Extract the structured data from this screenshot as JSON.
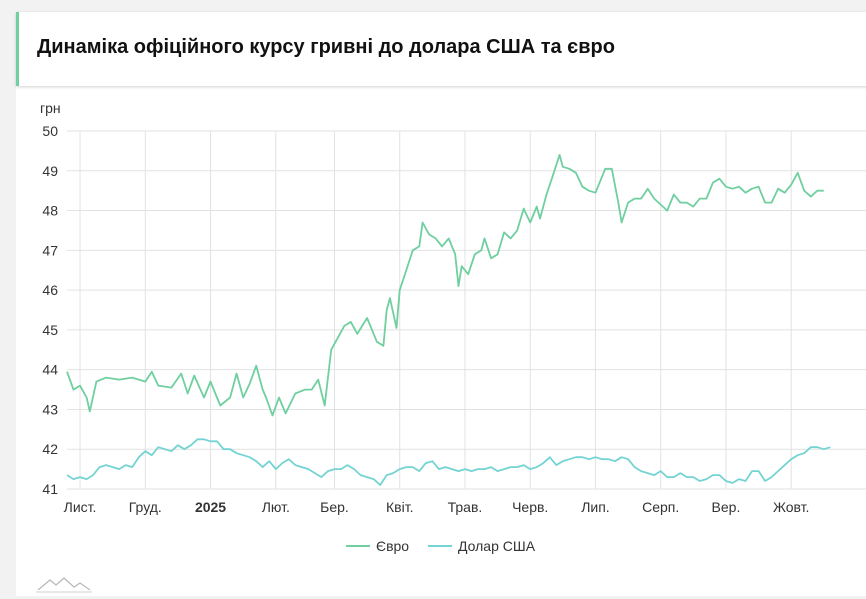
{
  "page": {
    "title": "Динаміка офіційного курсу гривні до долара США та євро"
  },
  "colors": {
    "eur": "#6fcf9f",
    "usd": "#74d3d3",
    "grid": "#e2e2e2",
    "accent": "#6fcf9f"
  },
  "chart_data": {
    "type": "line",
    "ylabel": "грн",
    "ylim": [
      41,
      50
    ],
    "yticks": [
      41,
      42,
      43,
      44,
      45,
      46,
      47,
      48,
      49,
      50
    ],
    "xlim": [
      0,
      12.4
    ],
    "xticks": [
      {
        "label": "Лист.",
        "x": 0.2,
        "bold": false
      },
      {
        "label": "Груд.",
        "x": 1.2,
        "bold": false
      },
      {
        "label": "2025",
        "x": 2.2,
        "bold": true
      },
      {
        "label": "Лют.",
        "x": 3.2,
        "bold": false
      },
      {
        "label": "Бер.",
        "x": 4.1,
        "bold": false
      },
      {
        "label": "Квіт.",
        "x": 5.1,
        "bold": false
      },
      {
        "label": "Трав.",
        "x": 6.1,
        "bold": false
      },
      {
        "label": "Черв.",
        "x": 7.1,
        "bold": false
      },
      {
        "label": "Лип.",
        "x": 8.1,
        "bold": false
      },
      {
        "label": "Серп.",
        "x": 9.1,
        "bold": false
      },
      {
        "label": "Вер.",
        "x": 10.1,
        "bold": false
      },
      {
        "label": "Жовт.",
        "x": 11.1,
        "bold": false
      }
    ],
    "grid": true,
    "legend_position": "bottom",
    "series": [
      {
        "name": "Євро",
        "color": "#6fcf9f",
        "points": [
          [
            0,
            43.95
          ],
          [
            0.1,
            43.5
          ],
          [
            0.2,
            43.6
          ],
          [
            0.3,
            43.3
          ],
          [
            0.35,
            42.95
          ],
          [
            0.45,
            43.7
          ],
          [
            0.6,
            43.8
          ],
          [
            0.8,
            43.75
          ],
          [
            1.0,
            43.8
          ],
          [
            1.2,
            43.7
          ],
          [
            1.3,
            43.95
          ],
          [
            1.4,
            43.6
          ],
          [
            1.6,
            43.55
          ],
          [
            1.75,
            43.9
          ],
          [
            1.85,
            43.4
          ],
          [
            1.95,
            43.85
          ],
          [
            2.1,
            43.3
          ],
          [
            2.2,
            43.7
          ],
          [
            2.35,
            43.1
          ],
          [
            2.5,
            43.3
          ],
          [
            2.6,
            43.9
          ],
          [
            2.7,
            43.3
          ],
          [
            2.8,
            43.65
          ],
          [
            2.9,
            44.1
          ],
          [
            3.0,
            43.5
          ],
          [
            3.05,
            43.3
          ],
          [
            3.15,
            42.85
          ],
          [
            3.25,
            43.3
          ],
          [
            3.35,
            42.9
          ],
          [
            3.5,
            43.4
          ],
          [
            3.65,
            43.5
          ],
          [
            3.75,
            43.5
          ],
          [
            3.85,
            43.75
          ],
          [
            3.95,
            43.1
          ],
          [
            4.05,
            44.5
          ],
          [
            4.15,
            44.8
          ],
          [
            4.25,
            45.1
          ],
          [
            4.35,
            45.2
          ],
          [
            4.45,
            44.9
          ],
          [
            4.6,
            45.3
          ],
          [
            4.75,
            44.7
          ],
          [
            4.85,
            44.6
          ],
          [
            4.9,
            45.5
          ],
          [
            4.95,
            45.8
          ],
          [
            5.05,
            45.05
          ],
          [
            5.1,
            46.0
          ],
          [
            5.2,
            46.5
          ],
          [
            5.3,
            47.0
          ],
          [
            5.4,
            47.1
          ],
          [
            5.45,
            47.7
          ],
          [
            5.55,
            47.4
          ],
          [
            5.65,
            47.3
          ],
          [
            5.75,
            47.1
          ],
          [
            5.85,
            47.3
          ],
          [
            5.95,
            46.9
          ],
          [
            6.0,
            46.1
          ],
          [
            6.05,
            46.6
          ],
          [
            6.15,
            46.4
          ],
          [
            6.25,
            46.9
          ],
          [
            6.35,
            47.0
          ],
          [
            6.4,
            47.3
          ],
          [
            6.5,
            46.8
          ],
          [
            6.6,
            46.9
          ],
          [
            6.7,
            47.45
          ],
          [
            6.8,
            47.3
          ],
          [
            6.9,
            47.5
          ],
          [
            7.0,
            48.05
          ],
          [
            7.1,
            47.7
          ],
          [
            7.2,
            48.1
          ],
          [
            7.25,
            47.8
          ],
          [
            7.35,
            48.4
          ],
          [
            7.45,
            48.9
          ],
          [
            7.55,
            49.4
          ],
          [
            7.6,
            49.1
          ],
          [
            7.7,
            49.05
          ],
          [
            7.8,
            48.95
          ],
          [
            7.9,
            48.6
          ],
          [
            8.0,
            48.5
          ],
          [
            8.1,
            48.45
          ],
          [
            8.25,
            49.05
          ],
          [
            8.35,
            49.05
          ],
          [
            8.45,
            48.2
          ],
          [
            8.5,
            47.7
          ],
          [
            8.6,
            48.2
          ],
          [
            8.7,
            48.3
          ],
          [
            8.8,
            48.3
          ],
          [
            8.9,
            48.55
          ],
          [
            9.0,
            48.3
          ],
          [
            9.1,
            48.15
          ],
          [
            9.2,
            48.0
          ],
          [
            9.3,
            48.4
          ],
          [
            9.4,
            48.2
          ],
          [
            9.5,
            48.2
          ],
          [
            9.6,
            48.1
          ],
          [
            9.7,
            48.3
          ],
          [
            9.8,
            48.3
          ],
          [
            9.9,
            48.7
          ],
          [
            10.0,
            48.8
          ],
          [
            10.1,
            48.6
          ],
          [
            10.2,
            48.55
          ],
          [
            10.3,
            48.6
          ],
          [
            10.4,
            48.45
          ],
          [
            10.5,
            48.55
          ],
          [
            10.6,
            48.6
          ],
          [
            10.7,
            48.2
          ],
          [
            10.8,
            48.2
          ],
          [
            10.9,
            48.55
          ],
          [
            11.0,
            48.45
          ],
          [
            11.1,
            48.65
          ],
          [
            11.2,
            48.95
          ],
          [
            11.3,
            48.5
          ],
          [
            11.4,
            48.35
          ],
          [
            11.5,
            48.5
          ],
          [
            11.6,
            48.5
          ]
        ]
      },
      {
        "name": "Долар США",
        "color": "#74d3d3",
        "points": [
          [
            0,
            41.35
          ],
          [
            0.1,
            41.25
          ],
          [
            0.2,
            41.3
          ],
          [
            0.3,
            41.25
          ],
          [
            0.4,
            41.35
          ],
          [
            0.5,
            41.55
          ],
          [
            0.6,
            41.6
          ],
          [
            0.7,
            41.55
          ],
          [
            0.8,
            41.5
          ],
          [
            0.9,
            41.6
          ],
          [
            1.0,
            41.55
          ],
          [
            1.1,
            41.8
          ],
          [
            1.2,
            41.95
          ],
          [
            1.3,
            41.85
          ],
          [
            1.4,
            42.05
          ],
          [
            1.5,
            42.0
          ],
          [
            1.6,
            41.95
          ],
          [
            1.7,
            42.1
          ],
          [
            1.8,
            42.0
          ],
          [
            1.9,
            42.1
          ],
          [
            2.0,
            42.25
          ],
          [
            2.1,
            42.25
          ],
          [
            2.2,
            42.2
          ],
          [
            2.3,
            42.2
          ],
          [
            2.4,
            42.0
          ],
          [
            2.5,
            42.0
          ],
          [
            2.6,
            41.9
          ],
          [
            2.7,
            41.85
          ],
          [
            2.8,
            41.8
          ],
          [
            2.9,
            41.7
          ],
          [
            3.0,
            41.55
          ],
          [
            3.1,
            41.7
          ],
          [
            3.2,
            41.5
          ],
          [
            3.3,
            41.65
          ],
          [
            3.4,
            41.75
          ],
          [
            3.5,
            41.6
          ],
          [
            3.6,
            41.55
          ],
          [
            3.7,
            41.5
          ],
          [
            3.8,
            41.4
          ],
          [
            3.9,
            41.3
          ],
          [
            4.0,
            41.45
          ],
          [
            4.1,
            41.5
          ],
          [
            4.2,
            41.5
          ],
          [
            4.3,
            41.6
          ],
          [
            4.4,
            41.5
          ],
          [
            4.5,
            41.35
          ],
          [
            4.6,
            41.3
          ],
          [
            4.7,
            41.25
          ],
          [
            4.8,
            41.1
          ],
          [
            4.9,
            41.35
          ],
          [
            5.0,
            41.4
          ],
          [
            5.1,
            41.5
          ],
          [
            5.2,
            41.55
          ],
          [
            5.3,
            41.55
          ],
          [
            5.4,
            41.45
          ],
          [
            5.5,
            41.65
          ],
          [
            5.6,
            41.7
          ],
          [
            5.7,
            41.5
          ],
          [
            5.8,
            41.55
          ],
          [
            5.9,
            41.5
          ],
          [
            6.0,
            41.45
          ],
          [
            6.1,
            41.5
          ],
          [
            6.2,
            41.45
          ],
          [
            6.3,
            41.5
          ],
          [
            6.4,
            41.5
          ],
          [
            6.5,
            41.55
          ],
          [
            6.6,
            41.45
          ],
          [
            6.7,
            41.5
          ],
          [
            6.8,
            41.55
          ],
          [
            6.9,
            41.55
          ],
          [
            7.0,
            41.6
          ],
          [
            7.1,
            41.5
          ],
          [
            7.2,
            41.55
          ],
          [
            7.3,
            41.65
          ],
          [
            7.4,
            41.8
          ],
          [
            7.5,
            41.6
          ],
          [
            7.6,
            41.7
          ],
          [
            7.7,
            41.75
          ],
          [
            7.8,
            41.8
          ],
          [
            7.9,
            41.8
          ],
          [
            8.0,
            41.75
          ],
          [
            8.1,
            41.8
          ],
          [
            8.2,
            41.75
          ],
          [
            8.3,
            41.75
          ],
          [
            8.4,
            41.7
          ],
          [
            8.5,
            41.8
          ],
          [
            8.6,
            41.75
          ],
          [
            8.7,
            41.55
          ],
          [
            8.8,
            41.45
          ],
          [
            8.9,
            41.4
          ],
          [
            9.0,
            41.35
          ],
          [
            9.1,
            41.45
          ],
          [
            9.2,
            41.3
          ],
          [
            9.3,
            41.3
          ],
          [
            9.4,
            41.4
          ],
          [
            9.5,
            41.3
          ],
          [
            9.6,
            41.3
          ],
          [
            9.7,
            41.2
          ],
          [
            9.8,
            41.25
          ],
          [
            9.9,
            41.35
          ],
          [
            10.0,
            41.35
          ],
          [
            10.1,
            41.2
          ],
          [
            10.2,
            41.15
          ],
          [
            10.3,
            41.25
          ],
          [
            10.4,
            41.2
          ],
          [
            10.5,
            41.45
          ],
          [
            10.6,
            41.45
          ],
          [
            10.7,
            41.2
          ],
          [
            10.8,
            41.3
          ],
          [
            10.9,
            41.45
          ],
          [
            11.0,
            41.6
          ],
          [
            11.1,
            41.75
          ],
          [
            11.2,
            41.85
          ],
          [
            11.3,
            41.9
          ],
          [
            11.4,
            42.05
          ],
          [
            11.5,
            42.05
          ],
          [
            11.6,
            42.0
          ],
          [
            11.7,
            42.05
          ]
        ]
      }
    ]
  }
}
